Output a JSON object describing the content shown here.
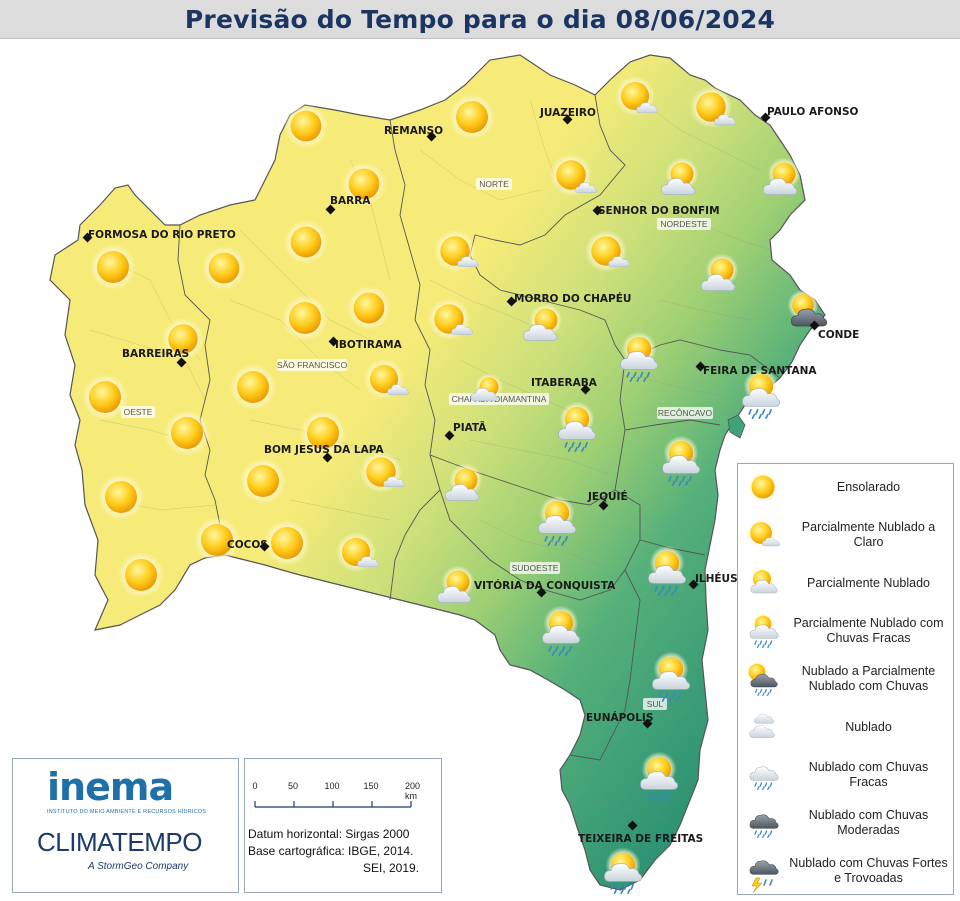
{
  "title": "Previsão do Tempo para o dia 08/06/2024",
  "colors": {
    "dry_yellow": "#f6eb78",
    "transition_green": "#b8d977",
    "humid_green": "#3a9e77",
    "title_text": "#1b3562"
  },
  "cities": [
    {
      "name": "JUAZEIRO"
    },
    {
      "name": "PAULO AFONSO"
    },
    {
      "name": "REMANSO"
    },
    {
      "name": "BARRA"
    },
    {
      "name": "SENHOR DO BONFIM"
    },
    {
      "name": "FORMOSA DO RIO PRETO"
    },
    {
      "name": "MORRO DO CHAPÉU"
    },
    {
      "name": "CONDE"
    },
    {
      "name": "IBOTIRAMA"
    },
    {
      "name": "BARREIRAS"
    },
    {
      "name": "FEIRA DE SANTANA"
    },
    {
      "name": "ITABERABA"
    },
    {
      "name": "PIATÃ"
    },
    {
      "name": "BOM JESUS DA LAPA"
    },
    {
      "name": "JEQUIÉ"
    },
    {
      "name": "COCOS"
    },
    {
      "name": "VITÓRIA DA CONQUISTA"
    },
    {
      "name": "ILHÉUS"
    },
    {
      "name": "EUNÁPOLIS"
    },
    {
      "name": "TEIXEIRA DE FREITAS"
    }
  ],
  "regions": [
    "NORTE",
    "NORDESTE",
    "SÃO FRANCISCO",
    "OESTE",
    "CHAPADA DIAMANTINA",
    "RECÔNCAVO",
    "SUDOESTE",
    "SUL"
  ],
  "legend": [
    {
      "icon": "sun-icon",
      "label": "Ensolarado"
    },
    {
      "icon": "sun-small-cloud-icon",
      "label": "Parcialmente Nublado a Claro"
    },
    {
      "icon": "sun-cloud-icon",
      "label": "Parcialmente Nublado"
    },
    {
      "icon": "sun-cloud-light-rain-icon",
      "label": "Parcialmente Nublado com Chuvas Fracas"
    },
    {
      "icon": "sun-dark-cloud-rain-icon",
      "label": "Nublado a Parcialmente Nublado com Chuvas"
    },
    {
      "icon": "cloud-icon",
      "label": "Nublado"
    },
    {
      "icon": "cloud-light-rain-icon",
      "label": "Nublado com Chuvas Fracas"
    },
    {
      "icon": "dark-cloud-rain-icon",
      "label": "Nublado com Chuvas Moderadas"
    },
    {
      "icon": "storm-cloud-icon",
      "label": "Nublado com Chuvas Fortes e Trovoadas"
    }
  ],
  "logos": {
    "inema": "inema",
    "inema_subtitle": "INSTITUTO DO MEIO AMBIENTE E RECURSOS HÍDRICOS",
    "climatempo": "CLIMATEMPO",
    "climatempo_tagline": "A StormGeo Company"
  },
  "scale": {
    "ticks": [
      "0",
      "50",
      "100",
      "150",
      "200 km"
    ],
    "datum": "Datum horizontal: Sirgas 2000",
    "base": "Base cartográfica: IBGE, 2014.",
    "source": "SEI, 2019."
  },
  "forecast_icons": [
    {
      "type": "sun-icon"
    },
    {
      "type": "sun-icon"
    },
    {
      "type": "sun-icon"
    },
    {
      "type": "sun-icon"
    },
    {
      "type": "sun-icon"
    },
    {
      "type": "sun-icon"
    },
    {
      "type": "sun-icon"
    },
    {
      "type": "sun-icon"
    },
    {
      "type": "sun-icon"
    },
    {
      "type": "sun-icon"
    },
    {
      "type": "sun-icon"
    },
    {
      "type": "sun-icon"
    },
    {
      "type": "sun-icon"
    },
    {
      "type": "sun-icon"
    },
    {
      "type": "sun-icon"
    },
    {
      "type": "sun-icon"
    },
    {
      "type": "sun-icon"
    },
    {
      "type": "sun-icon"
    },
    {
      "type": "sun-icon"
    },
    {
      "type": "sun-icon"
    },
    {
      "type": "sun-small-cloud-icon"
    },
    {
      "type": "sun-small-cloud-icon"
    },
    {
      "type": "sun-small-cloud-icon"
    },
    {
      "type": "sun-small-cloud-icon"
    },
    {
      "type": "sun-small-cloud-icon"
    },
    {
      "type": "sun-small-cloud-icon"
    },
    {
      "type": "sun-small-cloud-icon"
    },
    {
      "type": "sun-small-cloud-icon"
    },
    {
      "type": "sun-small-cloud-icon"
    },
    {
      "type": "sun-small-cloud-icon"
    },
    {
      "type": "sun-small-cloud-icon"
    },
    {
      "type": "sun-cloud-icon"
    },
    {
      "type": "sun-cloud-icon"
    },
    {
      "type": "sun-cloud-icon"
    },
    {
      "type": "sun-cloud-icon"
    },
    {
      "type": "sun-cloud-icon"
    },
    {
      "type": "sun-cloud-icon"
    },
    {
      "type": "sun-cloud-icon"
    },
    {
      "type": "sun-cloud-icon"
    },
    {
      "type": "sun-cloud-icon"
    },
    {
      "type": "sun-cloud-light-rain-icon"
    },
    {
      "type": "sun-cloud-light-rain-icon"
    },
    {
      "type": "sun-cloud-light-rain-icon"
    },
    {
      "type": "sun-cloud-light-rain-icon"
    },
    {
      "type": "sun-cloud-light-rain-icon"
    },
    {
      "type": "sun-cloud-light-rain-icon"
    },
    {
      "type": "sun-cloud-light-rain-icon"
    },
    {
      "type": "sun-cloud-light-rain-icon"
    },
    {
      "type": "sun-cloud-light-rain-icon"
    },
    {
      "type": "sun-cloud-light-rain-icon"
    },
    {
      "type": "sun-dark-cloud-rain-icon"
    }
  ]
}
